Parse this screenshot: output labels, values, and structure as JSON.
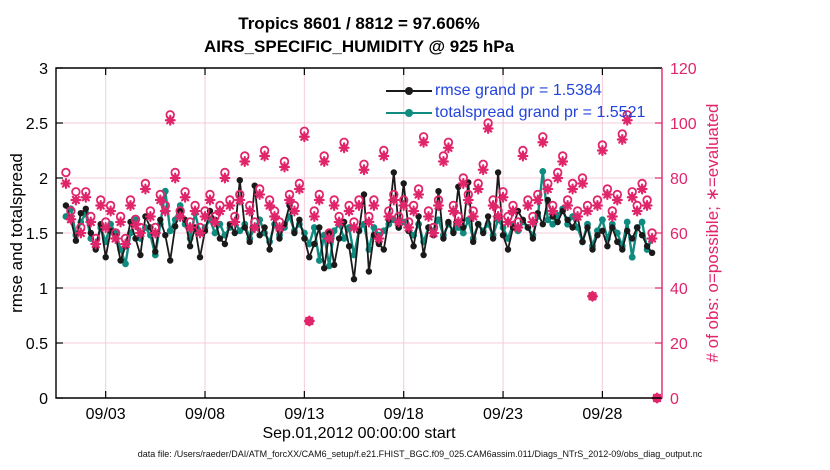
{
  "footer": {
    "text": "data file: /Users/raeder/DAI/ATM_forcXX/CAM6_setup/f.e21.FHIST_BGC.f09_025.CAM6assim.011/Diags_NTrS_2012-09/obs_diag_output.nc"
  },
  "colors": {
    "rmse": "#1a1a1a",
    "totalspread": "#0f8b80",
    "obs": "#e0256b",
    "grid": "#f4ccd9",
    "legend_text": "#2244dd",
    "axis": "#000000",
    "background": "#ffffff"
  },
  "chart_data": {
    "type": "line",
    "title": "Tropics 8601 / 8812 = 97.606%",
    "subtitle": "AIRS_SPECIFIC_HUMIDITY @ 925 hPa",
    "xlabel": "Sep.01,2012 00:00:00 start",
    "ylabel_left": "rmse and totalspread",
    "ylabel_right": "# of obs: o=possible; ∗=evaluated",
    "ylim_left": [
      0,
      3
    ],
    "yticks_left": [
      0,
      0.5,
      1,
      1.5,
      2,
      2.5,
      3
    ],
    "ytick_labels_left": [
      "0",
      "0.5",
      "1",
      "1.5",
      "2",
      "2.5",
      "3"
    ],
    "ylim_right": [
      0,
      120
    ],
    "yticks_right": [
      0,
      20,
      40,
      60,
      80,
      100,
      120
    ],
    "xlim_days": [
      0.5,
      31
    ],
    "xticks_days": [
      3,
      8,
      13,
      18,
      23,
      28
    ],
    "xtick_labels": [
      "09/03",
      "09/08",
      "09/13",
      "09/18",
      "09/23",
      "09/28"
    ],
    "time": {
      "start_label": "Sep.01,2012 00:00:00",
      "step_hours": 6,
      "start_day": 1,
      "step_day": 0.25,
      "bins": 120
    },
    "grid": true,
    "legend_position": "top-center-inside",
    "series": [
      {
        "name": "rmse grand pr = 1.5384",
        "axis": "left",
        "marker": "filled-circle",
        "values": [
          1.75,
          1.62,
          1.43,
          1.68,
          1.72,
          1.5,
          1.35,
          1.58,
          1.28,
          1.52,
          1.47,
          1.25,
          1.38,
          1.6,
          1.45,
          1.3,
          1.65,
          1.55,
          1.33,
          1.62,
          1.48,
          1.25,
          1.56,
          1.7,
          1.62,
          1.38,
          1.55,
          1.28,
          1.52,
          1.7,
          1.62,
          1.45,
          1.4,
          1.58,
          1.5,
          1.98,
          1.55,
          1.42,
          1.93,
          1.48,
          1.55,
          1.35,
          1.65,
          1.45,
          1.58,
          1.75,
          1.5,
          1.62,
          1.45,
          1.28,
          1.4,
          1.55,
          1.18,
          1.5,
          1.21,
          1.45,
          1.6,
          1.38,
          1.08,
          1.52,
          1.85,
          1.15,
          1.48,
          1.4,
          1.35,
          1.62,
          2.05,
          1.55,
          1.95,
          1.52,
          1.38,
          1.65,
          1.3,
          1.55,
          1.48,
          1.88,
          1.45,
          1.6,
          1.5,
          1.92,
          1.55,
          1.96,
          1.42,
          1.58,
          1.5,
          1.65,
          1.45,
          2.05,
          1.48,
          1.35,
          1.55,
          1.7,
          1.62,
          1.55,
          1.45,
          1.68,
          1.58,
          1.8,
          1.65,
          1.6,
          1.7,
          1.62,
          1.55,
          1.65,
          1.42,
          1.55,
          1.35,
          1.48,
          1.52,
          1.38,
          1.55,
          1.42,
          1.35,
          1.52,
          1.45,
          1.55,
          1.48,
          1.38,
          1.32,
          null
        ]
      },
      {
        "name": "totalspread grand pr = 1.5521",
        "axis": "left",
        "marker": "filled-circle",
        "values": [
          1.65,
          1.72,
          1.48,
          1.6,
          1.68,
          1.45,
          1.38,
          1.55,
          1.42,
          1.58,
          1.5,
          1.35,
          1.22,
          1.5,
          1.62,
          1.45,
          1.55,
          1.48,
          1.3,
          1.58,
          1.88,
          1.52,
          1.62,
          1.75,
          1.58,
          1.45,
          1.68,
          1.5,
          1.55,
          1.62,
          1.5,
          1.58,
          1.48,
          1.55,
          1.6,
          1.52,
          1.58,
          1.45,
          1.55,
          1.62,
          1.5,
          1.42,
          1.58,
          1.48,
          1.55,
          1.65,
          1.52,
          1.58,
          1.5,
          1.4,
          1.55,
          1.25,
          1.48,
          1.2,
          1.52,
          1.58,
          1.45,
          1.55,
          1.3,
          1.52,
          1.58,
          1.35,
          1.55,
          1.48,
          1.52,
          1.58,
          1.62,
          1.55,
          1.6,
          1.52,
          1.48,
          1.58,
          1.42,
          1.55,
          1.52,
          1.62,
          1.48,
          1.58,
          1.52,
          1.55,
          1.5,
          1.62,
          1.45,
          1.58,
          1.52,
          1.58,
          1.48,
          1.62,
          1.55,
          1.45,
          1.58,
          1.52,
          1.6,
          1.55,
          1.48,
          1.65,
          2.06,
          1.62,
          1.58,
          1.66,
          1.72,
          1.58,
          1.65,
          1.55,
          1.42,
          1.58,
          1.38,
          1.52,
          1.62,
          1.45,
          1.58,
          1.5,
          1.38,
          1.6,
          1.28,
          1.55,
          1.6,
          1.35,
          1.45,
          null
        ]
      },
      {
        "name": "# of obs possible",
        "axis": "right",
        "marker": "open-circle",
        "values": [
          82,
          68,
          75,
          62,
          75,
          66,
          58,
          72,
          64,
          70,
          60,
          66,
          58,
          72,
          65,
          62,
          78,
          68,
          62,
          74,
          70,
          103,
          82,
          68,
          75,
          64,
          70,
          62,
          68,
          74,
          66,
          70,
          82,
          72,
          66,
          74,
          88,
          70,
          64,
          76,
          90,
          72,
          68,
          64,
          86,
          74,
          70,
          78,
          97,
          28,
          68,
          74,
          88,
          60,
          72,
          66,
          93,
          70,
          64,
          72,
          85,
          66,
          72,
          60,
          90,
          68,
          74,
          66,
          72,
          64,
          70,
          76,
          95,
          68,
          62,
          72,
          88,
          93,
          70,
          66,
          80,
          74,
          68,
          78,
          85,
          100,
          72,
          68,
          75,
          66,
          70,
          64,
          90,
          72,
          66,
          74,
          95,
          78,
          70,
          82,
          88,
          72,
          78,
          68,
          80,
          70,
          37,
          72,
          92,
          76,
          68,
          74,
          96,
          103,
          75,
          70,
          78,
          72,
          60,
          0
        ]
      },
      {
        "name": "# of obs evaluated",
        "axis": "right",
        "marker": "asterisk",
        "values": [
          78,
          65,
          72,
          60,
          73,
          64,
          56,
          70,
          62,
          68,
          58,
          64,
          56,
          70,
          63,
          60,
          76,
          66,
          60,
          72,
          68,
          101,
          80,
          66,
          73,
          62,
          68,
          60,
          66,
          72,
          64,
          68,
          80,
          70,
          64,
          72,
          86,
          68,
          62,
          74,
          88,
          70,
          66,
          62,
          84,
          72,
          68,
          76,
          95,
          28,
          66,
          72,
          86,
          58,
          70,
          64,
          91,
          68,
          62,
          70,
          83,
          64,
          70,
          58,
          88,
          66,
          72,
          64,
          70,
          62,
          68,
          74,
          93,
          66,
          60,
          70,
          86,
          91,
          68,
          64,
          78,
          72,
          66,
          76,
          83,
          98,
          70,
          66,
          73,
          64,
          68,
          62,
          88,
          70,
          64,
          72,
          93,
          76,
          68,
          80,
          86,
          70,
          76,
          66,
          78,
          68,
          37,
          70,
          90,
          74,
          66,
          72,
          94,
          101,
          73,
          68,
          76,
          70,
          58,
          0
        ]
      }
    ]
  }
}
